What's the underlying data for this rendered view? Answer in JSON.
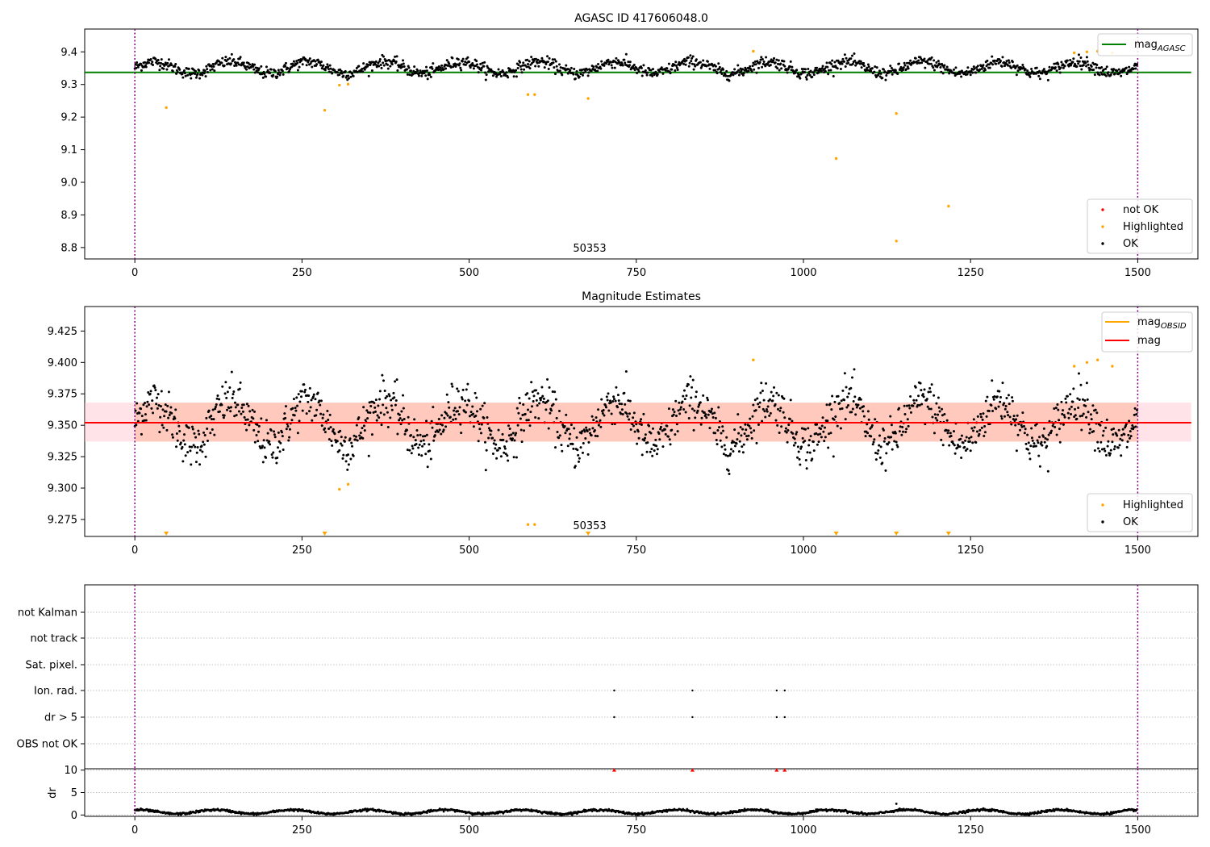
{
  "chart_data": [
    {
      "type": "scatter",
      "title": "AGASC ID 417606048.0",
      "xlim": [
        -75,
        1590
      ],
      "ylim": [
        8.765,
        9.47
      ],
      "x_ticks": [
        0,
        250,
        500,
        750,
        1000,
        1250,
        1500
      ],
      "y_ticks": [
        8.8,
        8.9,
        9.0,
        9.1,
        9.2,
        9.3,
        9.4
      ],
      "y_tick_labels": [
        "8.8",
        "8.9",
        "9.0",
        "9.1",
        "9.2",
        "9.3",
        "9.4"
      ],
      "vlines": [
        0,
        1500
      ],
      "annotation": "50353",
      "hline": {
        "name_base": "mag",
        "name_sub": "AGASC",
        "y": 9.337,
        "x": [
          -75,
          1580
        ],
        "color": "#008000"
      },
      "legend_lines": [
        {
          "base": "mag",
          "sub": "AGASC",
          "color": "#008000"
        }
      ],
      "legend_points": [
        {
          "label": "not OK",
          "color": "#ff0000"
        },
        {
          "label": "Highlighted",
          "color": "#ffa500"
        },
        {
          "label": "OK",
          "color": "#000000"
        }
      ],
      "series": {
        "ok": {
          "color": "#000000",
          "n": 1500,
          "base": 9.352,
          "amp": 0.018,
          "period": 115,
          "noise": 0.009
        },
        "highlighted": {
          "color": "#ffa500",
          "points": [
            [
              47,
              9.229
            ],
            [
              284,
              9.221
            ],
            [
              306,
              9.298
            ],
            [
              319,
              9.301
            ],
            [
              588,
              9.269
            ],
            [
              598,
              9.269
            ],
            [
              678,
              9.257
            ],
            [
              925,
              9.402
            ],
            [
              1049,
              9.073
            ],
            [
              1139,
              9.211
            ],
            [
              1139,
              8.82
            ],
            [
              1217,
              8.927
            ],
            [
              1405,
              9.397
            ],
            [
              1424,
              9.4
            ],
            [
              1440,
              9.402
            ],
            [
              1462,
              9.397
            ]
          ]
        }
      }
    },
    {
      "type": "scatter",
      "title": "Magnitude Estimates",
      "xlim": [
        -75,
        1590
      ],
      "ylim": [
        9.2615,
        9.4445
      ],
      "x_ticks": [
        0,
        250,
        500,
        750,
        1000,
        1250,
        1500
      ],
      "y_ticks": [
        9.275,
        9.3,
        9.325,
        9.35,
        9.375,
        9.4,
        9.425
      ],
      "y_tick_labels": [
        "9.275",
        "9.300",
        "9.325",
        "9.350",
        "9.375",
        "9.400",
        "9.425"
      ],
      "vlines": [
        0,
        1500
      ],
      "annotation": "50353",
      "mag_line": {
        "y": 9.352,
        "color": "#ff0000",
        "band_outer": [
          9.337,
          9.368
        ],
        "band_obsid": [
          9.337,
          9.368
        ],
        "x_outer": [
          -75,
          1580
        ],
        "x_obsid": [
          0,
          1500
        ]
      },
      "legend_lines": [
        {
          "base": "mag",
          "sub": "OBSID",
          "color": "#ffa500"
        },
        {
          "base": "mag",
          "sub": "",
          "color": "#ff0000"
        }
      ],
      "legend_points": [
        {
          "label": "Highlighted",
          "color": "#ffa500"
        },
        {
          "label": "OK",
          "color": "#000000"
        }
      ],
      "series": {
        "highlighted": {
          "color": "#ffa500",
          "points": [
            [
              306,
              9.299
            ],
            [
              319,
              9.303
            ],
            [
              588,
              9.271
            ],
            [
              598,
              9.271
            ],
            [
              925,
              9.402
            ],
            [
              1405,
              9.397
            ],
            [
              1424,
              9.4
            ],
            [
              1440,
              9.402
            ],
            [
              1462,
              9.397
            ]
          ]
        },
        "low_markers_x": [
          47,
          284,
          678,
          1049,
          1139,
          1217
        ]
      }
    },
    {
      "type": "scatter",
      "xlim": [
        -75,
        1590
      ],
      "x_ticks": [
        0,
        250,
        500,
        750,
        1000,
        1250,
        1500
      ],
      "vlines": [
        0,
        1500
      ],
      "flag_categories": [
        "OBS not OK",
        "dr > 5",
        "Ion. rad.",
        "Sat. pixel.",
        "not track",
        "not Kalman"
      ],
      "flag_points": {
        "dr > 5": [
          717,
          834,
          960,
          972
        ],
        "Ion. rad.": [
          717,
          834,
          960,
          972
        ]
      },
      "dr_ylabel": "dr",
      "dr_ylim": [
        -0.3,
        10.3
      ],
      "dr_yticks": [
        0,
        5,
        10
      ],
      "dr_highlight": {
        "color": "#ff0000",
        "x": [
          717,
          834,
          960,
          972
        ],
        "y": 10
      },
      "dr_series": {
        "color": "#000000",
        "n": 1500,
        "base": 0.7,
        "amp": 0.45,
        "period": 115
      },
      "dr_outliers": [
        [
          1139,
          2.5
        ]
      ]
    }
  ]
}
